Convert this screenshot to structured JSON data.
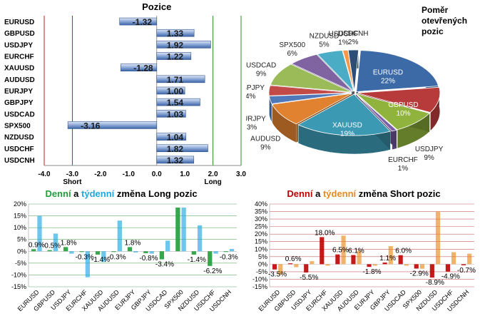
{
  "colors": {
    "bar_blue": "#4a74b6",
    "bar_blue_light": "#b7c9e6",
    "long_green": "#1f9e3a",
    "short_red": "#c00000",
    "grid_green": "#2e8b2e",
    "grid_red": "#b22222",
    "tyden_blue": "#1fa7e0",
    "tyden_orange": "#e88a1a"
  },
  "chart_data": [
    {
      "type": "bar",
      "orientation": "horizontal",
      "title": "Pozice",
      "categories": [
        "EURUSD",
        "GBPUSD",
        "USDJPY",
        "EURCHF",
        "XAUUSD",
        "AUDUSD",
        "EURJPY",
        "GBPJPY",
        "USDCAD",
        "SPX500",
        "NZDUSD",
        "USDCHF",
        "USDCNH"
      ],
      "values": [
        -1.32,
        1.33,
        1.92,
        1.22,
        -1.28,
        1.71,
        1.0,
        1.54,
        1.03,
        -3.16,
        1.04,
        1.82,
        1.32
      ],
      "value_labels": [
        "-1.32",
        "1.33",
        "1.92",
        "1.22",
        "-1.28",
        "1.71",
        "1.00",
        "1.54",
        "1.03",
        "-3.16",
        "1.04",
        "1.82",
        "1.32"
      ],
      "xlim": [
        -4.0,
        3.0
      ],
      "xticks": [
        "-4.0",
        "-3.0",
        "-2.0",
        "-1.0",
        "0.0",
        "1.0",
        "2.0",
        "3.0"
      ],
      "refline_short": -3.0,
      "refline_long": 2.0,
      "short_label": "Short",
      "long_label": "Long"
    },
    {
      "type": "pie",
      "title_lines": [
        "Poměr",
        "otevřených",
        "pozic"
      ],
      "slices": [
        {
          "label": "EURUSD",
          "value": 22,
          "text": "22%",
          "color": "#3b6aa6"
        },
        {
          "label": "GBPUSD",
          "value": 10,
          "text": "10%",
          "color": "#b83b3b"
        },
        {
          "label": "USDJPY",
          "value": 9,
          "text": "9%",
          "color": "#8fb33c"
        },
        {
          "label": "EURCHF",
          "value": 1,
          "text": "1%",
          "color": "#7b5fa8"
        },
        {
          "label": "XAUUSD",
          "value": 19,
          "text": "19%",
          "color": "#3c99b3"
        },
        {
          "label": "AUDUSD",
          "value": 9,
          "text": "9%",
          "color": "#e0822f"
        },
        {
          "label": "EURJPY",
          "value": 3,
          "text": "3%",
          "color": "#4f79b8"
        },
        {
          "label": "GBPJPY",
          "value": 4,
          "text": "4%",
          "color": "#c24b48"
        },
        {
          "label": "USDCAD",
          "value": 9,
          "text": "9%",
          "color": "#9bbb59"
        },
        {
          "label": "SPX500",
          "value": 6,
          "text": "6%",
          "color": "#8064a2"
        },
        {
          "label": "NZDUSD",
          "value": 5,
          "text": "5%",
          "color": "#4bacc6"
        },
        {
          "label": "USDCHF",
          "value": 1,
          "text": "1%",
          "color": "#f79646"
        },
        {
          "label": "USDCNH",
          "value": 2,
          "text": "2%",
          "color": "#2c4d75"
        }
      ]
    },
    {
      "type": "bar",
      "title_parts": [
        "Denní",
        " a ",
        "týdenní",
        " změna Long pozic"
      ],
      "categories": [
        "EURUSD",
        "GBPUSD",
        "USDJPY",
        "EURCHF",
        "XAUUSD",
        "AUDUSD",
        "EURJPY",
        "GBPJPY",
        "USDCAD",
        "SPX500",
        "NZDUSD",
        "USDCHF",
        "USDCNH"
      ],
      "series": [
        {
          "name": "Denní",
          "values": [
            0.9,
            0.5,
            1.8,
            -0.3,
            -1.4,
            -0.3,
            1.8,
            -0.8,
            -3.4,
            18.5,
            -1.4,
            -6.2,
            -0.3
          ],
          "color": "#2e8b2e"
        },
        {
          "name": "týdenní",
          "values": [
            15,
            7.5,
            -1,
            -11,
            -4.5,
            13,
            -0.5,
            -1,
            4.5,
            18.5,
            11,
            -1,
            1
          ],
          "color": "#5aa6e6"
        }
      ],
      "data_labels": [
        "0.9%",
        "0.5%",
        "1.8%",
        "-0.3%",
        "-1.4%",
        "-0.3%",
        "1.8%",
        "-0.8%",
        "-3.4%",
        "",
        "-1.4%",
        "-6.2%",
        "-0.3%"
      ],
      "ylim": [
        -15,
        20
      ],
      "yticks": [
        "-15%",
        "-10%",
        "-5%",
        "0%",
        "5%",
        "10%",
        "15%",
        "20%"
      ]
    },
    {
      "type": "bar",
      "title_parts": [
        "Denní",
        " a ",
        "týdenní",
        " změna Short pozic"
      ],
      "categories": [
        "EURUSD",
        "GBPUSD",
        "USDJPY",
        "EURCHF",
        "XAUUSD",
        "AUDUSD",
        "EURJPY",
        "GBPJPY",
        "USDCAD",
        "SPX500",
        "NZDUSD",
        "USDCHF",
        "USDCNH"
      ],
      "series": [
        {
          "name": "Denní",
          "values": [
            -3.5,
            0.6,
            -5.5,
            18.0,
            6.5,
            6.1,
            -1.8,
            1.1,
            6.0,
            -2.9,
            -8.9,
            -4.9,
            -0.7
          ],
          "color": "#c00000"
        },
        {
          "name": "týdenní",
          "values": [
            -7,
            -2,
            2,
            -1,
            19,
            9,
            -1,
            12,
            -1,
            -3,
            35,
            8,
            7
          ],
          "color": "#7a1a1a"
        }
      ],
      "data_labels": [
        "-3.5%",
        "0.6%",
        "-5.5%",
        "18.0%",
        "6.5%",
        "6.1%",
        "-1.8%",
        "1.1%",
        "6.0%",
        "-2.9%",
        "-8.9%",
        "-4.9%",
        "-0.7%"
      ],
      "ylim": [
        -15,
        40
      ],
      "yticks": [
        "-15%",
        "-10%",
        "-5%",
        "0%",
        "5%",
        "10%",
        "15%",
        "20%",
        "25%",
        "30%",
        "35%",
        "40%"
      ]
    }
  ]
}
